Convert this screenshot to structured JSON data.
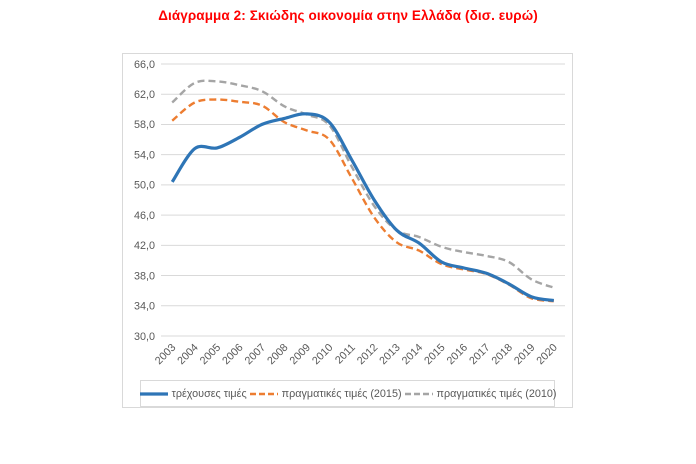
{
  "title": "Διάγραμμα 2: Σκιώδης οικονομία στην Ελλάδα (δισ. ευρώ)",
  "colors": {
    "title": "#FF0000",
    "axis_text": "#595959",
    "gridline": "#d9d9d9",
    "border": "#d9d9d9",
    "series_current": "#2E75B6",
    "series_real_2015": "#ED7D31",
    "series_real_2010": "#A5A5A5"
  },
  "chart_data": {
    "type": "line",
    "title": "Διάγραμμα 2: Σκιώδης οικονομία στην Ελλάδα (δισ. ευρώ)",
    "categories": [
      "2003",
      "2004",
      "2005",
      "2006",
      "2007",
      "2008",
      "2009",
      "2010",
      "2011",
      "2012",
      "2013",
      "2014",
      "2015",
      "2016",
      "2017",
      "2018",
      "2019",
      "2020"
    ],
    "series": [
      {
        "name": "τρέχουσες τιμές",
        "color": "#2E75B6",
        "style": "solid",
        "values": [
          50.4,
          54.8,
          54.9,
          56.3,
          58.0,
          58.8,
          59.4,
          58.3,
          53.3,
          48.0,
          44.0,
          42.3,
          39.8,
          39.0,
          38.3,
          36.9,
          35.2,
          34.7
        ]
      },
      {
        "name": "πραγματικές τιμές (2015)",
        "color": "#ED7D31",
        "style": "dashed",
        "values": [
          58.5,
          60.9,
          61.3,
          61.0,
          60.5,
          58.3,
          57.2,
          56.0,
          50.9,
          45.7,
          42.4,
          41.3,
          39.5,
          38.8,
          38.2,
          36.8,
          35.0,
          34.6
        ]
      },
      {
        "name": "πραγματικές τιμές (2010)",
        "color": "#A5A5A5",
        "style": "dashed",
        "values": [
          60.9,
          63.5,
          63.7,
          63.2,
          62.4,
          60.4,
          59.3,
          57.9,
          52.4,
          47.2,
          44.0,
          43.1,
          41.8,
          41.1,
          40.6,
          39.8,
          37.5,
          36.4
        ]
      }
    ],
    "xlabel": "",
    "ylabel": "",
    "ylim": [
      30,
      66
    ],
    "yticks": [
      30,
      34,
      38,
      42,
      46,
      50,
      54,
      58,
      62,
      66
    ],
    "ytick_decimal_separator": ",",
    "grid": true,
    "legend_position": "bottom",
    "x_label_rotation": -45
  }
}
